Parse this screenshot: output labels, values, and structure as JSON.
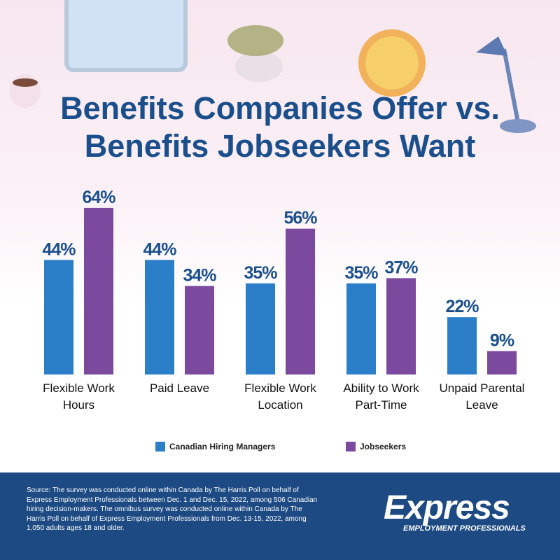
{
  "chart_data": {
    "type": "bar",
    "title": "Benefits Companies Offer vs. Benefits Jobseekers Want",
    "categories": [
      "Flexible Work Hours",
      "Paid Leave",
      "Flexible Work Location",
      "Ability to Work Part-Time",
      "Unpaid Parental Leave"
    ],
    "series": [
      {
        "name": "Canadian Hiring Managers",
        "color": "#2b7fc8",
        "values": [
          44,
          44,
          35,
          35,
          22
        ],
        "value_labels": [
          "44%",
          "44%",
          "35%",
          "35%",
          "22%"
        ]
      },
      {
        "name": "Jobseekers",
        "color": "#7b4a9f",
        "values": [
          64,
          34,
          56,
          37,
          9
        ],
        "value_labels": [
          "64%",
          "34%",
          "56%",
          "37%",
          "9%"
        ]
      }
    ],
    "ylim": [
      0,
      100
    ],
    "source": "Source: The survey was conducted online within Canada by The Harris Poll on behalf of Express Employment Professionals between Dec. 1 and Dec. 15, 2022, among 506 Canadian hiring decision-makers. The omnibus survey was conducted online within Canada by The Harris Poll on behalf of Express Employment Professionals from Dec. 13-15, 2022, among 1,050 adults ages 18 and older.",
    "logo": {
      "brand": "Express",
      "tagline": "EMPLOYMENT PROFESSIONALS"
    }
  }
}
